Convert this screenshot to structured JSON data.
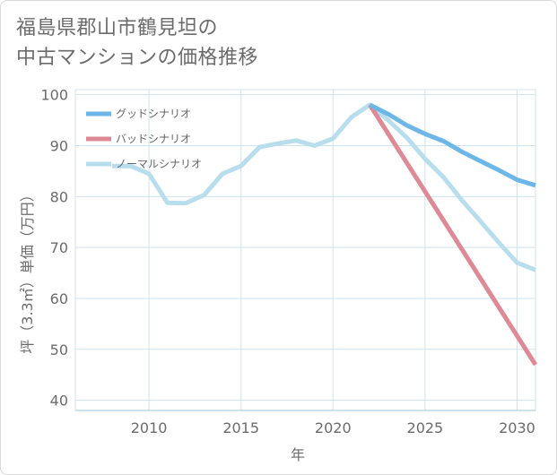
{
  "title_line1": "福島県郡山市鶴見坦の",
  "title_line2": "中古マンションの価格推移",
  "chart_data": {
    "type": "line",
    "xlabel": "年",
    "ylabel": "坪（3.3㎡）単価（万円）",
    "xlim": [
      2006,
      2031
    ],
    "ylim": [
      38,
      101
    ],
    "x_ticks": [
      2010,
      2015,
      2020,
      2025,
      2030
    ],
    "y_ticks": [
      40,
      50,
      60,
      70,
      80,
      90,
      100
    ],
    "grid": true,
    "legend_position": "top-left",
    "series": [
      {
        "name": "グッドシナリオ",
        "color": "#6cb6e8",
        "x": [
          2022,
          2023,
          2024,
          2025,
          2026,
          2027,
          2028,
          2029,
          2030,
          2031
        ],
        "values": [
          98,
          96.2,
          94,
          92.3,
          90.9,
          88.8,
          87,
          85.2,
          83.3,
          82.2
        ]
      },
      {
        "name": "バッドシナリオ",
        "color": "#de8a96",
        "x": [
          2022,
          2031
        ],
        "values": [
          98,
          47
        ]
      },
      {
        "name": "ノーマルシナリオ",
        "color": "#b8deee",
        "x": [
          2008,
          2009,
          2010,
          2011,
          2012,
          2013,
          2014,
          2015,
          2016,
          2017,
          2018,
          2019,
          2020,
          2021,
          2022,
          2023,
          2024,
          2025,
          2026,
          2027,
          2028,
          2029,
          2030,
          2031
        ],
        "values": [
          86,
          86,
          84.5,
          78.8,
          78.7,
          80.3,
          84.5,
          86,
          89.7,
          90.4,
          91,
          90,
          91.4,
          95.6,
          98,
          95,
          91.6,
          87.4,
          83.8,
          79.3,
          75.2,
          71,
          67,
          65.6
        ]
      }
    ]
  }
}
